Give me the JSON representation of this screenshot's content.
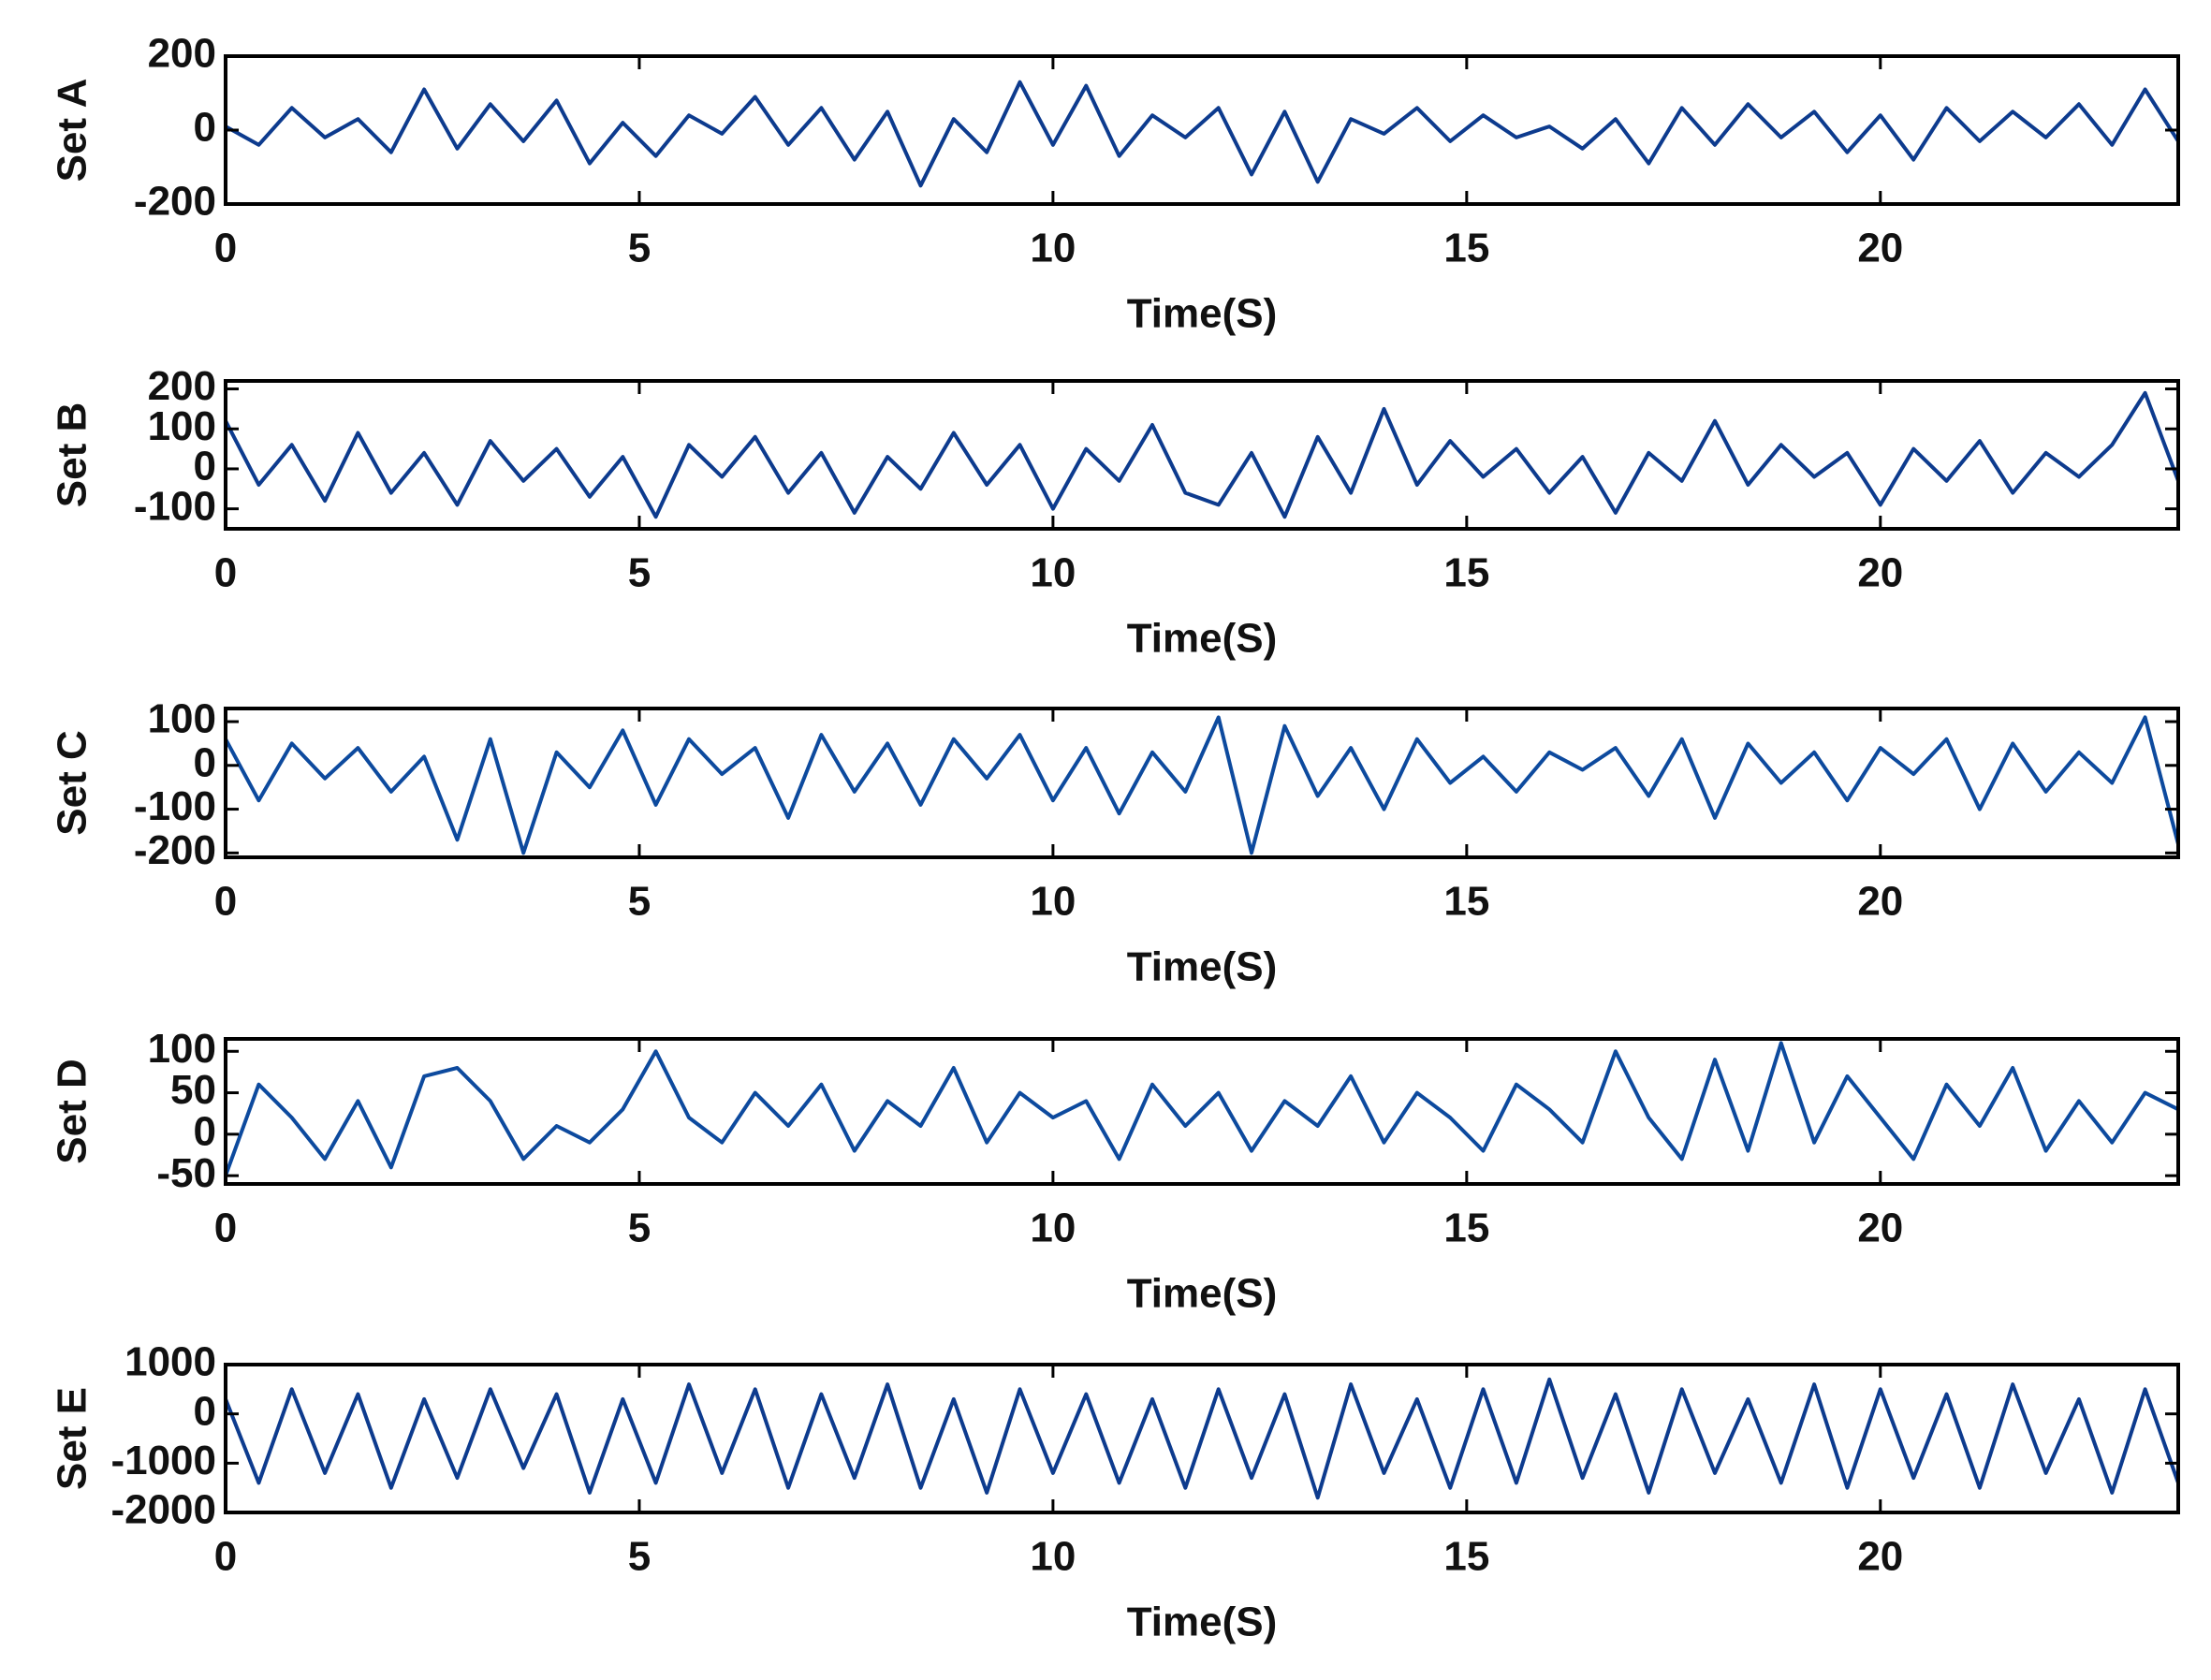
{
  "chart_data": [
    {
      "type": "line",
      "ylabel": "Set A",
      "xlabel": "Time(S)",
      "color": "#0d3b8e",
      "x": [
        0,
        0.4,
        0.8,
        1.2,
        1.6,
        2,
        2.4,
        2.8,
        3.2,
        3.6,
        4,
        4.4,
        4.8,
        5.2,
        5.6,
        6,
        6.4,
        6.8,
        7.2,
        7.6,
        8,
        8.4,
        8.8,
        9.2,
        9.6,
        10,
        10.4,
        10.8,
        11.2,
        11.6,
        12,
        12.4,
        12.8,
        13.2,
        13.6,
        14,
        14.4,
        14.8,
        15.2,
        15.6,
        16,
        16.4,
        16.8,
        17.2,
        17.6,
        18,
        18.4,
        18.8,
        19.2,
        19.6,
        20,
        20.4,
        20.8,
        21.2,
        21.6,
        22,
        22.4,
        22.8,
        23.2,
        23.6
      ],
      "values": [
        10,
        -40,
        60,
        -20,
        30,
        -60,
        110,
        -50,
        70,
        -30,
        80,
        -90,
        20,
        -70,
        40,
        -10,
        90,
        -40,
        60,
        -80,
        50,
        -150,
        30,
        -60,
        130,
        -40,
        120,
        -70,
        40,
        -20,
        60,
        -120,
        50,
        -140,
        30,
        -10,
        60,
        -30,
        40,
        -20,
        10,
        -50,
        30,
        -90,
        60,
        -40,
        70,
        -20,
        50,
        -60,
        40,
        -80,
        60,
        -30,
        50,
        -20,
        70,
        -40,
        110,
        -30
      ],
      "xlim": [
        0,
        23.6
      ],
      "xticks": [
        0,
        5,
        10,
        15,
        20
      ],
      "ylim": [
        -200,
        200
      ],
      "yticks": [
        -200,
        0,
        200
      ]
    },
    {
      "type": "line",
      "ylabel": "Set B",
      "xlabel": "Time(S)",
      "color": "#0d3b8e",
      "x": [
        0,
        0.4,
        0.8,
        1.2,
        1.6,
        2,
        2.4,
        2.8,
        3.2,
        3.6,
        4,
        4.4,
        4.8,
        5.2,
        5.6,
        6,
        6.4,
        6.8,
        7.2,
        7.6,
        8,
        8.4,
        8.8,
        9.2,
        9.6,
        10,
        10.4,
        10.8,
        11.2,
        11.6,
        12,
        12.4,
        12.8,
        13.2,
        13.6,
        14,
        14.4,
        14.8,
        15.2,
        15.6,
        16,
        16.4,
        16.8,
        17.2,
        17.6,
        18,
        18.4,
        18.8,
        19.2,
        19.6,
        20,
        20.4,
        20.8,
        21.2,
        21.6,
        22,
        22.4,
        22.8,
        23.2,
        23.6
      ],
      "values": [
        120,
        -40,
        60,
        -80,
        90,
        -60,
        40,
        -90,
        70,
        -30,
        50,
        -70,
        30,
        -120,
        60,
        -20,
        80,
        -60,
        40,
        -110,
        30,
        -50,
        90,
        -40,
        60,
        -100,
        50,
        -30,
        110,
        -60,
        -90,
        40,
        -120,
        80,
        -60,
        150,
        -40,
        70,
        -20,
        50,
        -60,
        30,
        -110,
        40,
        -30,
        120,
        -40,
        60,
        -20,
        40,
        -90,
        50,
        -30,
        70,
        -60,
        40,
        -20,
        60,
        190,
        -30
      ],
      "xlim": [
        0,
        23.6
      ],
      "xticks": [
        0,
        5,
        10,
        15,
        20
      ],
      "ylim": [
        -150,
        220
      ],
      "yticks": [
        -100,
        0,
        100,
        200
      ]
    },
    {
      "type": "line",
      "ylabel": "Set C",
      "xlabel": "Time(S)",
      "color": "#0d4a9e",
      "x": [
        0,
        0.4,
        0.8,
        1.2,
        1.6,
        2,
        2.4,
        2.8,
        3.2,
        3.6,
        4,
        4.4,
        4.8,
        5.2,
        5.6,
        6,
        6.4,
        6.8,
        7.2,
        7.6,
        8,
        8.4,
        8.8,
        9.2,
        9.6,
        10,
        10.4,
        10.8,
        11.2,
        11.6,
        12,
        12.4,
        12.8,
        13.2,
        13.6,
        14,
        14.4,
        14.8,
        15.2,
        15.6,
        16,
        16.4,
        16.8,
        17.2,
        17.6,
        18,
        18.4,
        18.8,
        19.2,
        19.6,
        20,
        20.4,
        20.8,
        21.2,
        21.6,
        22,
        22.4,
        22.8,
        23.2,
        23.6
      ],
      "values": [
        60,
        -80,
        50,
        -30,
        40,
        -60,
        20,
        -170,
        60,
        -200,
        30,
        -50,
        80,
        -90,
        60,
        -20,
        40,
        -120,
        70,
        -60,
        50,
        -90,
        60,
        -30,
        70,
        -80,
        40,
        -110,
        30,
        -60,
        110,
        -200,
        90,
        -70,
        40,
        -100,
        60,
        -40,
        20,
        -60,
        30,
        -10,
        40,
        -70,
        60,
        -120,
        50,
        -40,
        30,
        -80,
        40,
        -20,
        60,
        -100,
        50,
        -60,
        30,
        -40,
        110,
        -180
      ],
      "xlim": [
        0,
        23.6
      ],
      "xticks": [
        0,
        5,
        10,
        15,
        20
      ],
      "ylim": [
        -210,
        130
      ],
      "yticks": [
        -200,
        -100,
        0,
        100
      ]
    },
    {
      "type": "line",
      "ylabel": "Set D",
      "xlabel": "Time(S)",
      "color": "#0d4a9e",
      "x": [
        0,
        0.4,
        0.8,
        1.2,
        1.6,
        2,
        2.4,
        2.8,
        3.2,
        3.6,
        4,
        4.4,
        4.8,
        5.2,
        5.6,
        6,
        6.4,
        6.8,
        7.2,
        7.6,
        8,
        8.4,
        8.8,
        9.2,
        9.6,
        10,
        10.4,
        10.8,
        11.2,
        11.6,
        12,
        12.4,
        12.8,
        13.2,
        13.6,
        14,
        14.4,
        14.8,
        15.2,
        15.6,
        16,
        16.4,
        16.8,
        17.2,
        17.6,
        18,
        18.4,
        18.8,
        19.2,
        19.6,
        20,
        20.4,
        20.8,
        21.2,
        21.6,
        22,
        22.4,
        22.8,
        23.2,
        23.6
      ],
      "values": [
        -50,
        60,
        20,
        -30,
        40,
        -40,
        70,
        80,
        40,
        -30,
        10,
        -10,
        30,
        100,
        20,
        -10,
        50,
        10,
        60,
        -20,
        40,
        10,
        80,
        -10,
        50,
        20,
        40,
        -30,
        60,
        10,
        50,
        -20,
        40,
        10,
        70,
        -10,
        50,
        20,
        -20,
        60,
        30,
        -10,
        100,
        20,
        -30,
        90,
        -20,
        110,
        -10,
        70,
        20,
        -30,
        60,
        10,
        80,
        -20,
        40,
        -10,
        50,
        30
      ],
      "xlim": [
        0,
        23.6
      ],
      "xticks": [
        0,
        5,
        10,
        15,
        20
      ],
      "ylim": [
        -60,
        115
      ],
      "yticks": [
        -50,
        0,
        50,
        100
      ]
    },
    {
      "type": "line",
      "ylabel": "Set E",
      "xlabel": "Time(S)",
      "color": "#0d3b8e",
      "x": [
        0,
        0.4,
        0.8,
        1.2,
        1.6,
        2,
        2.4,
        2.8,
        3.2,
        3.6,
        4,
        4.4,
        4.8,
        5.2,
        5.6,
        6,
        6.4,
        6.8,
        7.2,
        7.6,
        8,
        8.4,
        8.8,
        9.2,
        9.6,
        10,
        10.4,
        10.8,
        11.2,
        11.6,
        12,
        12.4,
        12.8,
        13.2,
        13.6,
        14,
        14.4,
        14.8,
        15.2,
        15.6,
        16,
        16.4,
        16.8,
        17.2,
        17.6,
        18,
        18.4,
        18.8,
        19.2,
        19.6,
        20,
        20.4,
        20.8,
        21.2,
        21.6,
        22,
        22.4,
        22.8,
        23.2,
        23.6
      ],
      "values": [
        300,
        -1400,
        500,
        -1200,
        400,
        -1500,
        300,
        -1300,
        500,
        -1100,
        400,
        -1600,
        300,
        -1400,
        600,
        -1200,
        500,
        -1500,
        400,
        -1300,
        600,
        -1500,
        300,
        -1600,
        500,
        -1200,
        400,
        -1400,
        300,
        -1500,
        500,
        -1300,
        400,
        -1700,
        600,
        -1200,
        300,
        -1500,
        500,
        -1400,
        700,
        -1300,
        400,
        -1600,
        500,
        -1200,
        300,
        -1400,
        600,
        -1500,
        500,
        -1300,
        400,
        -1500,
        600,
        -1200,
        300,
        -1600,
        500,
        -1400
      ],
      "xlim": [
        0,
        23.6
      ],
      "xticks": [
        0,
        5,
        10,
        15,
        20
      ],
      "ylim": [
        -2000,
        1000
      ],
      "yticks": [
        -2000,
        -1000,
        0,
        1000
      ]
    }
  ]
}
